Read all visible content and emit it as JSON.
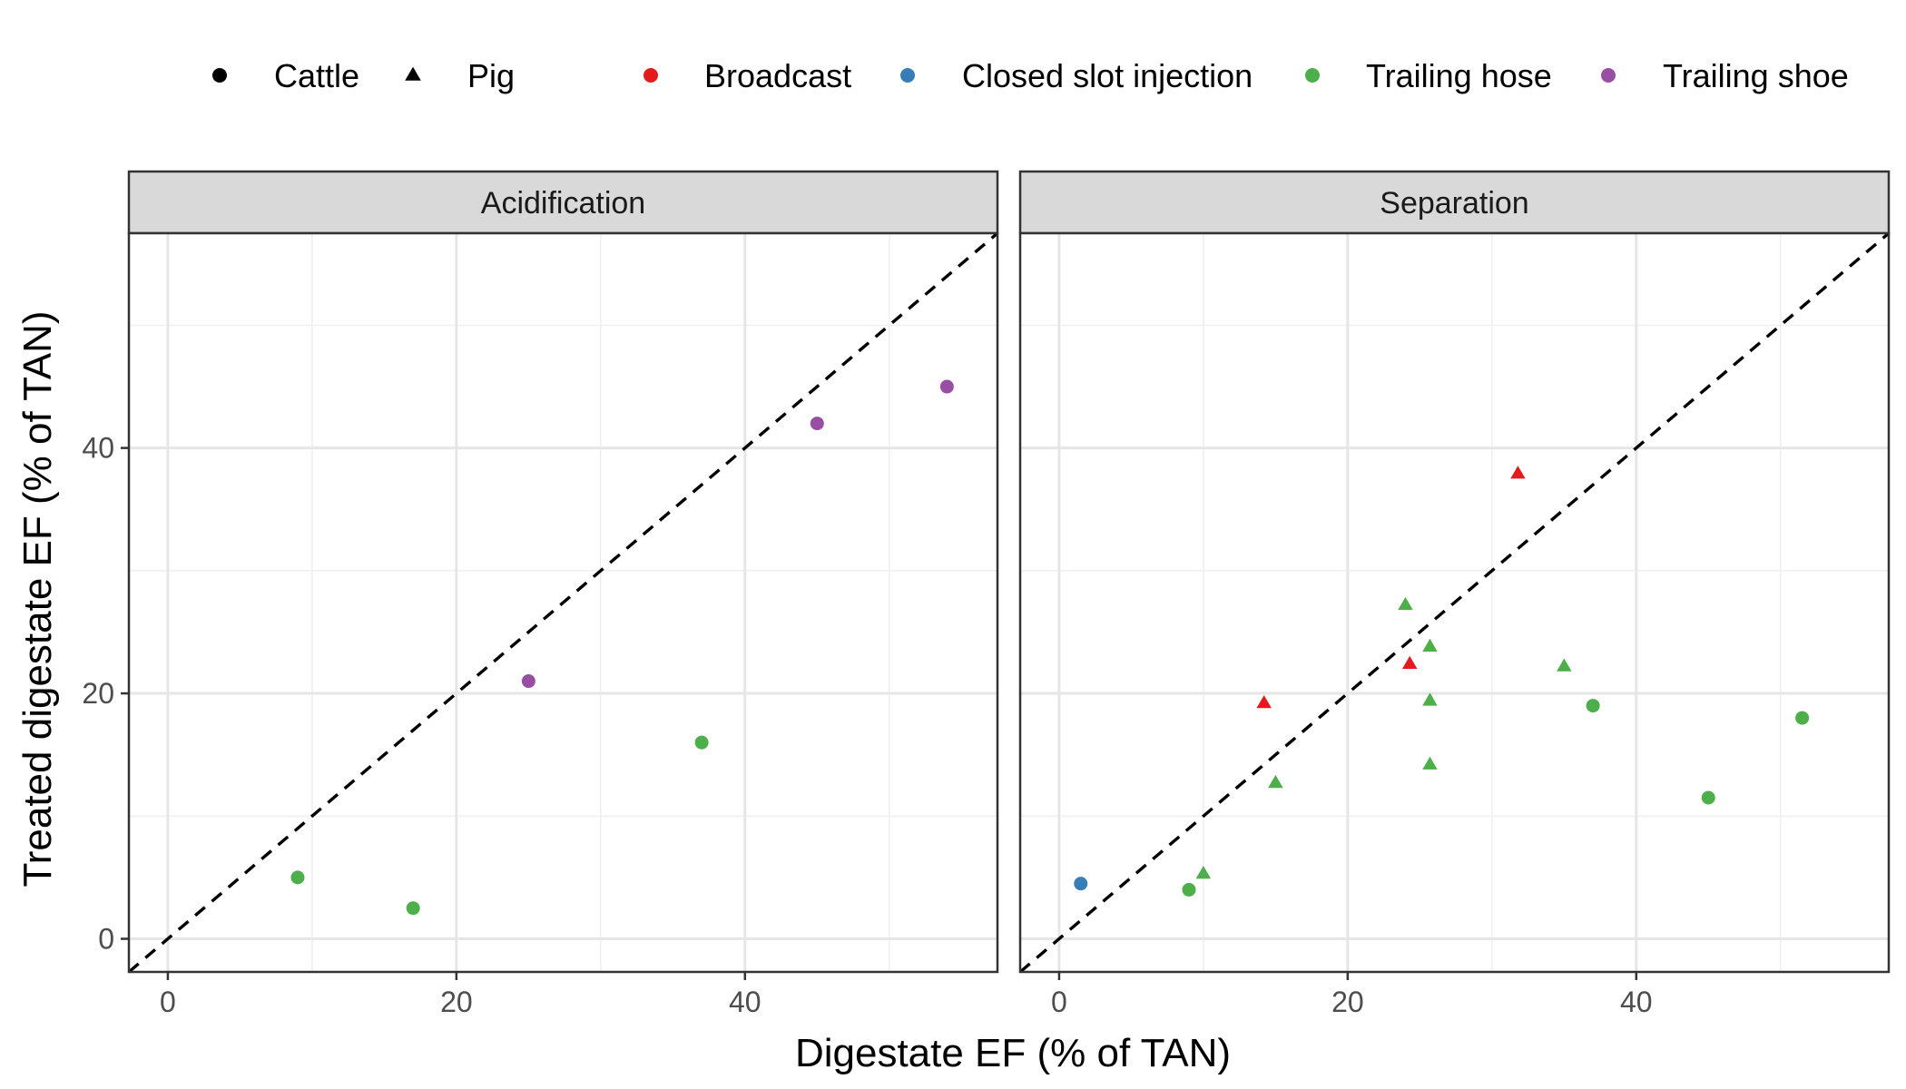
{
  "chart_data": {
    "type": "scatter",
    "xlabel": "Digestate EF (% of TAN)",
    "ylabel": "Treated digestate EF (% of TAN)",
    "xlim": [
      -2.7,
      57.5
    ],
    "ylim": [
      -2.7,
      57.5
    ],
    "x_ticks": [
      0,
      20,
      40
    ],
    "y_ticks": [
      0,
      20,
      40
    ],
    "grid": true,
    "reference_line": "y = x (dashed)",
    "legend": {
      "position": "top",
      "shape_entries": [
        {
          "label": "Cattle",
          "shape": "circle"
        },
        {
          "label": "Pig",
          "shape": "triangle"
        }
      ],
      "color_entries": [
        {
          "label": "Broadcast",
          "color": "#e41a1c"
        },
        {
          "label": "Closed slot injection",
          "color": "#377eb8"
        },
        {
          "label": "Trailing hose",
          "color": "#4daf4a"
        },
        {
          "label": "Trailing shoe",
          "color": "#984ea3"
        }
      ]
    },
    "panels": [
      {
        "title": "Acidification",
        "points": [
          {
            "x": 9,
            "y": 5,
            "animal": "Cattle",
            "method": "Trailing hose"
          },
          {
            "x": 17,
            "y": 2.5,
            "animal": "Cattle",
            "method": "Trailing hose"
          },
          {
            "x": 37,
            "y": 16,
            "animal": "Cattle",
            "method": "Trailing hose"
          },
          {
            "x": 25,
            "y": 21,
            "animal": "Cattle",
            "method": "Trailing shoe"
          },
          {
            "x": 45,
            "y": 42,
            "animal": "Cattle",
            "method": "Trailing shoe"
          },
          {
            "x": 54,
            "y": 45,
            "animal": "Cattle",
            "method": "Trailing shoe"
          }
        ]
      },
      {
        "title": "Separation",
        "points": [
          {
            "x": 1.5,
            "y": 4.5,
            "animal": "Cattle",
            "method": "Closed slot injection"
          },
          {
            "x": 9,
            "y": 4,
            "animal": "Cattle",
            "method": "Trailing hose"
          },
          {
            "x": 37,
            "y": 19,
            "animal": "Cattle",
            "method": "Trailing hose"
          },
          {
            "x": 45,
            "y": 11.5,
            "animal": "Cattle",
            "method": "Trailing hose"
          },
          {
            "x": 51.5,
            "y": 18,
            "animal": "Cattle",
            "method": "Trailing hose"
          },
          {
            "x": 14.2,
            "y": 19.2,
            "animal": "Pig",
            "method": "Broadcast"
          },
          {
            "x": 24.3,
            "y": 22.4,
            "animal": "Pig",
            "method": "Broadcast"
          },
          {
            "x": 31.8,
            "y": 37.9,
            "animal": "Pig",
            "method": "Broadcast"
          },
          {
            "x": 10,
            "y": 5.3,
            "animal": "Pig",
            "method": "Trailing hose"
          },
          {
            "x": 15,
            "y": 12.7,
            "animal": "Pig",
            "method": "Trailing hose"
          },
          {
            "x": 24,
            "y": 27.2,
            "animal": "Pig",
            "method": "Trailing hose"
          },
          {
            "x": 25.7,
            "y": 23.8,
            "animal": "Pig",
            "method": "Trailing hose"
          },
          {
            "x": 25.7,
            "y": 19.4,
            "animal": "Pig",
            "method": "Trailing hose"
          },
          {
            "x": 25.7,
            "y": 14.2,
            "animal": "Pig",
            "method": "Trailing hose"
          },
          {
            "x": 35,
            "y": 22.2,
            "animal": "Pig",
            "method": "Trailing hose"
          }
        ]
      }
    ]
  }
}
